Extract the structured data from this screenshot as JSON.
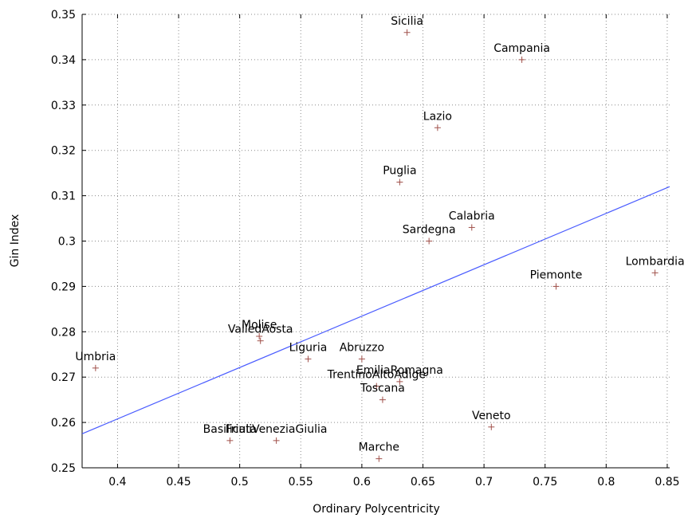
{
  "chart_data": {
    "type": "scatter",
    "title": "",
    "xlabel": "Ordinary Polycentricity",
    "ylabel": "Gin Index",
    "xlim": [
      0.371,
      0.852
    ],
    "ylim": [
      0.25,
      0.35
    ],
    "x_ticks": [
      0.4,
      0.45,
      0.5,
      0.55,
      0.6,
      0.65,
      0.7,
      0.75,
      0.8,
      0.85
    ],
    "x_tick_labels": [
      "0.4",
      "0.45",
      "0.5",
      "0.55",
      "0.6",
      "0.65",
      "0.7",
      "0.75",
      "0.8",
      "0.85"
    ],
    "y_ticks": [
      0.25,
      0.26,
      0.27,
      0.28,
      0.29,
      0.3,
      0.31,
      0.32,
      0.33,
      0.34,
      0.35
    ],
    "y_tick_labels": [
      "0.25",
      "0.26",
      "0.27",
      "0.28",
      "0.29",
      "0.3",
      "0.31",
      "0.32",
      "0.33",
      "0.34",
      "0.35"
    ],
    "grid": true,
    "marker": "+",
    "marker_color": "#a0504a",
    "line_color": "#4a5cff",
    "points": [
      {
        "label": "Sicilia",
        "x": 0.637,
        "y": 0.346
      },
      {
        "label": "Campania",
        "x": 0.731,
        "y": 0.34
      },
      {
        "label": "Lazio",
        "x": 0.662,
        "y": 0.325
      },
      {
        "label": "Puglia",
        "x": 0.631,
        "y": 0.313
      },
      {
        "label": "Calabria",
        "x": 0.69,
        "y": 0.303
      },
      {
        "label": "Sardegna",
        "x": 0.655,
        "y": 0.3
      },
      {
        "label": "Lombardia",
        "x": 0.84,
        "y": 0.293
      },
      {
        "label": "Piemonte",
        "x": 0.759,
        "y": 0.29
      },
      {
        "label": "Molise",
        "x": 0.516,
        "y": 0.279
      },
      {
        "label": "ValledAosta",
        "x": 0.517,
        "y": 0.278
      },
      {
        "label": "Umbria",
        "x": 0.382,
        "y": 0.272
      },
      {
        "label": "Liguria",
        "x": 0.556,
        "y": 0.274
      },
      {
        "label": "Abruzzo",
        "x": 0.6,
        "y": 0.274
      },
      {
        "label": "EmiliaRomagna",
        "x": 0.631,
        "y": 0.269
      },
      {
        "label": "TrentinoAltoAdige",
        "x": 0.612,
        "y": 0.268
      },
      {
        "label": "Toscana",
        "x": 0.617,
        "y": 0.265
      },
      {
        "label": "Veneto",
        "x": 0.706,
        "y": 0.259
      },
      {
        "label": "Basilicata",
        "x": 0.492,
        "y": 0.256
      },
      {
        "label": "FriuliVeneziaGiulia",
        "x": 0.53,
        "y": 0.256
      },
      {
        "label": "Marche",
        "x": 0.614,
        "y": 0.252
      }
    ],
    "fit_line": {
      "x": [
        0.371,
        0.852
      ],
      "y": [
        0.2575,
        0.312
      ]
    }
  }
}
